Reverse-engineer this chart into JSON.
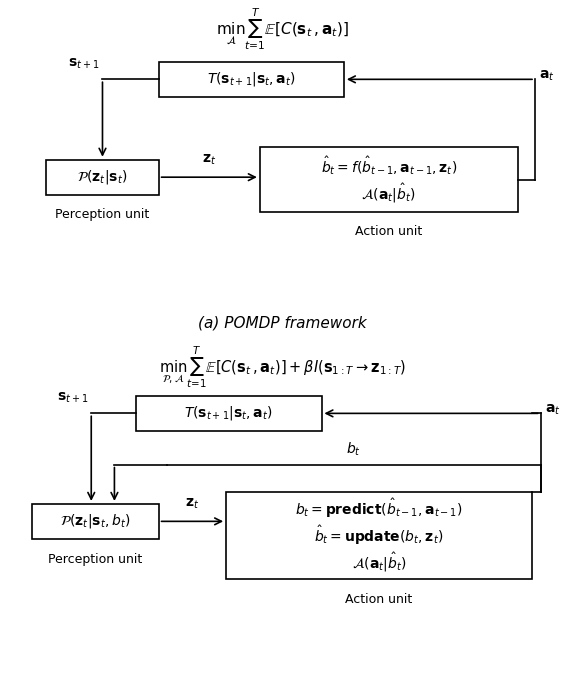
{
  "fig_width": 5.66,
  "fig_height": 6.82,
  "bg_color": "#ffffff",
  "diagram_a": {
    "title": "$\\min_{\\mathcal{A}} \\sum_{t=1}^{T} \\mathbb{E}\\left[C(\\mathbf{s}_t, \\mathbf{a}_t)\\right]$",
    "caption": "(a) POMDP framework",
    "transition_box": "$T(\\mathbf{s}_{t+1}|\\mathbf{s}_t, \\mathbf{a}_t)$",
    "perception_box": "$\\mathcal{P}(\\mathbf{z}_t|\\mathbf{s}_t)$",
    "perception_label": "Perception unit",
    "action_box_line1": "$\\hat{b}_t = f(\\hat{b}_{t-1}, \\mathbf{a}_{t-1}, \\mathbf{z}_t)$",
    "action_box_line2": "$\\mathcal{A}(\\mathbf{a}_t|\\hat{b}_t)$",
    "action_label": "Action unit",
    "label_s": "$\\mathbf{s}_{t+1}$",
    "label_a": "$\\mathbf{a}_t$",
    "label_z": "$\\mathbf{z}_t$"
  },
  "diagram_b": {
    "title": "$\\min_{\\mathcal{P},\\mathcal{A}} \\sum_{t=1}^{T} \\mathbb{E}\\left[C(\\mathbf{s}_t, \\mathbf{a}_t)\\right] + \\beta I(\\mathbf{s}_{1:T} \\rightarrow \\mathbf{z}_{1:T})$",
    "transition_box": "$T(\\mathbf{s}_{t+1}|\\mathbf{s}_t, \\mathbf{a}_t)$",
    "perception_box": "$\\mathcal{P}(\\mathbf{z}_t|\\mathbf{s}_t, b_t)$",
    "perception_label": "Perception unit",
    "action_box_line1": "$b_t = \\mathbf{predict}(\\hat{b}_{t-1}, \\mathbf{a}_{t-1})$",
    "action_box_line2": "$\\hat{b}_t = \\mathbf{update}(b_t, \\mathbf{z}_t)$",
    "action_box_line3": "$\\mathcal{A}(\\mathbf{a}_t|\\hat{b}_t)$",
    "action_label": "Action unit",
    "label_s": "$\\mathbf{s}_{t+1}$",
    "label_a": "$\\mathbf{a}_t$",
    "label_z": "$\\mathbf{z}_t$",
    "label_b": "$b_t$"
  }
}
